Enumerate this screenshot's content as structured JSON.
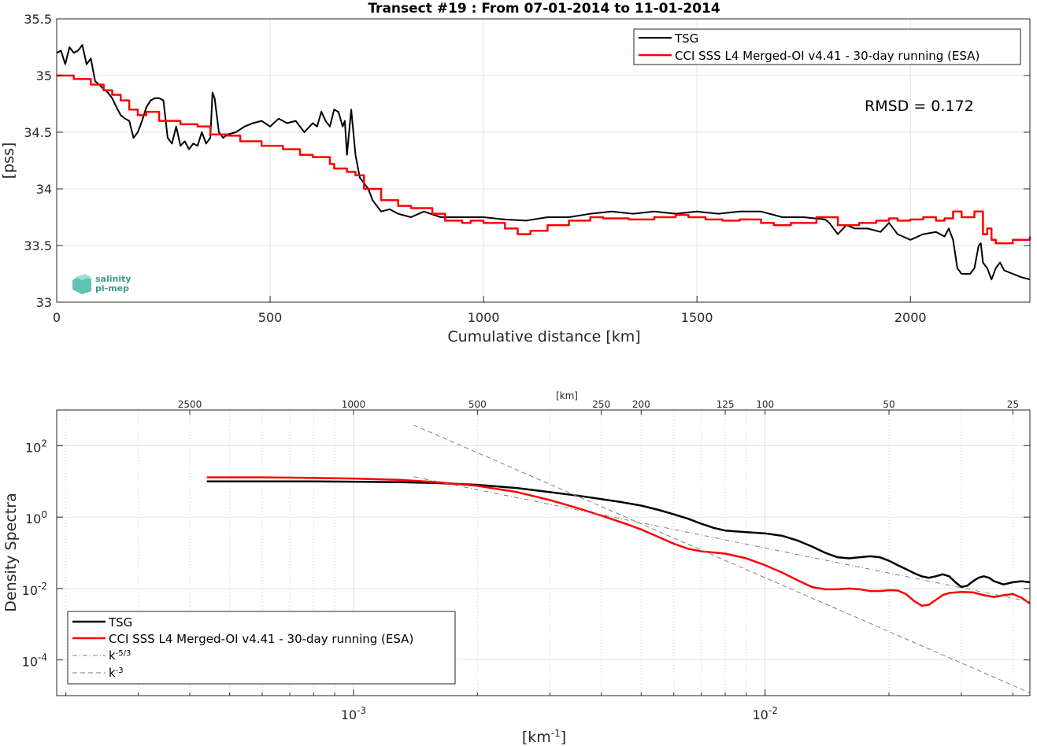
{
  "chart_data": [
    {
      "type": "line",
      "title": "Transect #19 : From 07-01-2014 to 11-01-2014",
      "xlabel": "Cumulative distance [km]",
      "ylabel": "[pss]",
      "xlim": [
        0,
        2280
      ],
      "ylim": [
        33,
        35.5
      ],
      "xticks": [
        0,
        500,
        1000,
        1500,
        2000
      ],
      "yticks": [
        33,
        33.5,
        34,
        34.5,
        35,
        35.5
      ],
      "grid": true,
      "legend_position": "top-right",
      "annotation": "RMSD = 0.172",
      "logo_text": [
        "salinity",
        "pi-mep"
      ],
      "series": [
        {
          "name": "TSG",
          "color": "#000000",
          "step": false,
          "x": [
            0,
            10,
            20,
            30,
            40,
            50,
            60,
            70,
            80,
            90,
            100,
            110,
            120,
            130,
            140,
            150,
            160,
            170,
            180,
            190,
            200,
            210,
            220,
            230,
            240,
            250,
            260,
            270,
            280,
            290,
            300,
            310,
            320,
            330,
            340,
            350,
            360,
            365,
            370,
            375,
            380,
            390,
            400,
            420,
            440,
            460,
            480,
            500,
            520,
            540,
            560,
            580,
            600,
            610,
            620,
            630,
            640,
            650,
            660,
            670,
            675,
            680,
            690,
            700,
            710,
            720,
            730,
            740,
            760,
            780,
            800,
            830,
            860,
            900,
            950,
            1000,
            1050,
            1100,
            1150,
            1200,
            1250,
            1300,
            1350,
            1400,
            1450,
            1500,
            1550,
            1600,
            1650,
            1700,
            1750,
            1800,
            1810,
            1830,
            1850,
            1870,
            1900,
            1930,
            1950,
            1970,
            2000,
            2030,
            2060,
            2080,
            2090,
            2100,
            2110,
            2120,
            2140,
            2150,
            2160,
            2165,
            2170,
            2180,
            2190,
            2200,
            2210,
            2220,
            2240,
            2260,
            2280
          ],
          "values": [
            35.2,
            35.22,
            35.1,
            35.25,
            35.2,
            35.22,
            35.27,
            35.1,
            35.15,
            34.95,
            34.92,
            34.88,
            34.85,
            34.8,
            34.72,
            34.65,
            34.62,
            34.6,
            34.45,
            34.5,
            34.6,
            34.72,
            34.78,
            34.8,
            34.8,
            34.78,
            34.45,
            34.4,
            34.55,
            34.38,
            34.42,
            34.35,
            34.4,
            34.38,
            34.5,
            34.4,
            34.45,
            34.85,
            34.8,
            34.65,
            34.5,
            34.45,
            34.48,
            34.5,
            34.55,
            34.58,
            34.6,
            34.55,
            34.62,
            34.58,
            34.6,
            34.5,
            34.58,
            34.55,
            34.68,
            34.6,
            34.55,
            34.7,
            34.68,
            34.55,
            34.6,
            34.3,
            34.7,
            34.3,
            34.1,
            34.05,
            34.0,
            33.9,
            33.8,
            33.82,
            33.78,
            33.75,
            33.8,
            33.75,
            33.75,
            33.75,
            33.73,
            33.72,
            33.75,
            33.75,
            33.78,
            33.8,
            33.78,
            33.8,
            33.78,
            33.8,
            33.78,
            33.8,
            33.8,
            33.75,
            33.75,
            33.73,
            33.7,
            33.6,
            33.68,
            33.65,
            33.65,
            33.62,
            33.7,
            33.6,
            33.55,
            33.6,
            33.62,
            33.58,
            33.65,
            33.55,
            33.3,
            33.25,
            33.25,
            33.3,
            33.5,
            33.52,
            33.35,
            33.3,
            33.2,
            33.3,
            33.35,
            33.28,
            33.25,
            33.22,
            33.2
          ]
        },
        {
          "name": "CCI SSS L4 Merged-OI v4.41 - 30-day running (ESA)",
          "color": "#ff0000",
          "step": true,
          "x": [
            0,
            40,
            80,
            110,
            130,
            150,
            170,
            190,
            210,
            240,
            290,
            330,
            360,
            400,
            430,
            480,
            530,
            570,
            600,
            640,
            650,
            680,
            700,
            720,
            760,
            800,
            830,
            880,
            910,
            950,
            970,
            1000,
            1050,
            1080,
            1110,
            1150,
            1200,
            1250,
            1280,
            1340,
            1400,
            1450,
            1480,
            1520,
            1560,
            1600,
            1650,
            1680,
            1720,
            1780,
            1830,
            1880,
            1920,
            1950,
            1970,
            2000,
            2030,
            2060,
            2080,
            2100,
            2120,
            2150,
            2170,
            2180,
            2190,
            2200,
            2240,
            2280
          ],
          "values": [
            35.0,
            34.97,
            34.92,
            34.87,
            34.83,
            34.78,
            34.7,
            34.65,
            34.68,
            34.6,
            34.57,
            34.55,
            34.48,
            34.47,
            34.42,
            34.38,
            34.35,
            34.3,
            34.28,
            34.22,
            34.18,
            34.15,
            34.12,
            34.0,
            33.9,
            33.85,
            33.83,
            33.78,
            33.72,
            33.7,
            33.72,
            33.7,
            33.65,
            33.6,
            33.63,
            33.68,
            33.72,
            33.75,
            33.74,
            33.73,
            33.75,
            33.77,
            33.75,
            33.73,
            33.72,
            33.73,
            33.7,
            33.68,
            33.7,
            33.75,
            33.68,
            33.7,
            33.72,
            33.74,
            33.72,
            33.73,
            33.75,
            33.72,
            33.74,
            33.8,
            33.75,
            33.8,
            33.6,
            33.65,
            33.55,
            33.52,
            33.55,
            33.58
          ]
        }
      ]
    },
    {
      "type": "line",
      "title": "",
      "xlabel": "[km^-1]",
      "ylabel": "Density Spectra",
      "x_scale": "log",
      "y_scale": "log",
      "xlim": [
        0.00019,
        0.044
      ],
      "ylim": [
        1e-05,
        1000
      ],
      "xticks": [
        0.001,
        0.01
      ],
      "xtick_labels": [
        "10^-3",
        "10^-2"
      ],
      "yticks": [
        0.0001,
        0.01,
        1,
        100
      ],
      "ytick_labels": [
        "10^-4",
        "10^-2",
        "10^0",
        "10^2"
      ],
      "top_axis_label": "[km]",
      "top_ticks_km": [
        2500,
        1000,
        500,
        250,
        200,
        125,
        100,
        50,
        25
      ],
      "grid": true,
      "legend_position": "bottom-left",
      "series": [
        {
          "name": "TSG",
          "color": "#000000",
          "style": "solid",
          "x": [
            0.00044,
            0.0006,
            0.0008,
            0.001,
            0.0013,
            0.0016,
            0.002,
            0.0025,
            0.003,
            0.0035,
            0.004,
            0.0045,
            0.005,
            0.0055,
            0.006,
            0.0065,
            0.007,
            0.0075,
            0.008,
            0.009,
            0.01,
            0.011,
            0.012,
            0.013,
            0.014,
            0.015,
            0.016,
            0.017,
            0.018,
            0.019,
            0.02,
            0.021,
            0.022,
            0.023,
            0.024,
            0.025,
            0.026,
            0.027,
            0.028,
            0.029,
            0.03,
            0.031,
            0.032,
            0.033,
            0.034,
            0.035,
            0.036,
            0.038,
            0.04,
            0.042,
            0.044
          ],
          "values": [
            10,
            10,
            10,
            9.8,
            9.5,
            9,
            8,
            6.5,
            5,
            4,
            3.2,
            2.6,
            2.1,
            1.6,
            1.2,
            0.9,
            0.65,
            0.5,
            0.42,
            0.38,
            0.35,
            0.3,
            0.22,
            0.15,
            0.1,
            0.075,
            0.07,
            0.075,
            0.08,
            0.075,
            0.06,
            0.045,
            0.035,
            0.027,
            0.022,
            0.02,
            0.022,
            0.025,
            0.022,
            0.015,
            0.011,
            0.012,
            0.016,
            0.02,
            0.022,
            0.02,
            0.016,
            0.013,
            0.015,
            0.016,
            0.015
          ]
        },
        {
          "name": "CCI SSS L4 Merged-OI v4.41 - 30-day running (ESA)",
          "color": "#ff0000",
          "style": "solid",
          "x": [
            0.00044,
            0.0006,
            0.0008,
            0.001,
            0.0013,
            0.0016,
            0.002,
            0.0025,
            0.003,
            0.0035,
            0.004,
            0.0045,
            0.005,
            0.0055,
            0.006,
            0.0065,
            0.007,
            0.008,
            0.009,
            0.01,
            0.011,
            0.012,
            0.013,
            0.014,
            0.015,
            0.016,
            0.017,
            0.018,
            0.019,
            0.02,
            0.021,
            0.022,
            0.023,
            0.024,
            0.025,
            0.026,
            0.027,
            0.028,
            0.03,
            0.032,
            0.034,
            0.036,
            0.038,
            0.04,
            0.042,
            0.044
          ],
          "values": [
            13,
            13,
            12.5,
            12,
            11,
            9.5,
            7.5,
            5,
            3,
            1.8,
            1.1,
            0.7,
            0.45,
            0.28,
            0.18,
            0.13,
            0.11,
            0.095,
            0.07,
            0.045,
            0.028,
            0.017,
            0.011,
            0.0095,
            0.0095,
            0.01,
            0.0095,
            0.0085,
            0.0085,
            0.009,
            0.0088,
            0.007,
            0.0045,
            0.0033,
            0.0035,
            0.0048,
            0.0065,
            0.0075,
            0.008,
            0.0078,
            0.0065,
            0.0058,
            0.0065,
            0.007,
            0.0055,
            0.0038
          ]
        },
        {
          "name": "k^-5/3",
          "color": "#808080",
          "style": "dashdot",
          "x": [
            0.0014,
            0.044
          ],
          "values": [
            13.5,
            0.0043
          ]
        },
        {
          "name": "k^-3",
          "color": "#808080",
          "style": "dashed",
          "x": [
            0.0014,
            0.044
          ],
          "values": [
            380,
            1.2e-05
          ]
        }
      ]
    }
  ]
}
